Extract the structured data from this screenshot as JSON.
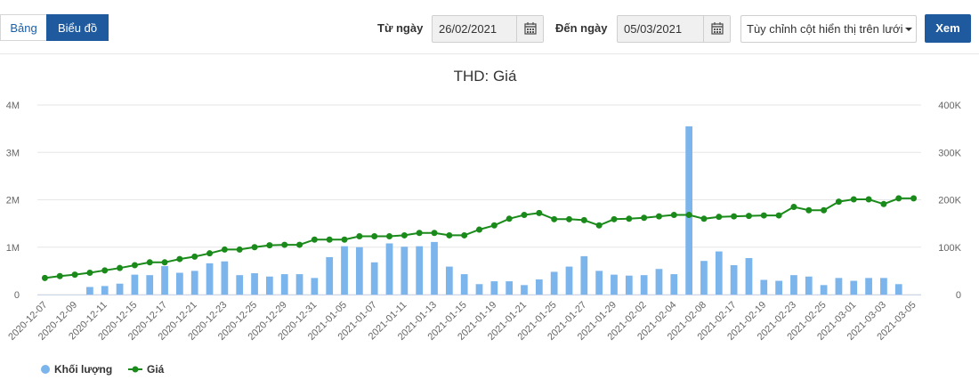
{
  "toolbar": {
    "tab_table": "Bảng",
    "tab_chart": "Biểu đồ",
    "from_label": "Từ ngày",
    "from_value": "26/02/2021",
    "to_label": "Đến ngày",
    "to_value": "05/03/2021",
    "column_select": "Tùy chỉnh cột hiển thị trên lưới",
    "view_button": "Xem"
  },
  "chart_data": {
    "type": "bar",
    "title": "THD: Giá",
    "categories": [
      "2020-12-07",
      "2020-12-08",
      "2020-12-09",
      "2020-12-10",
      "2020-12-11",
      "2020-12-14",
      "2020-12-15",
      "2020-12-16",
      "2020-12-17",
      "2020-12-18",
      "2020-12-21",
      "2020-12-22",
      "2020-12-23",
      "2020-12-24",
      "2020-12-25",
      "2020-12-28",
      "2020-12-29",
      "2020-12-30",
      "2020-12-31",
      "2021-01-04",
      "2021-01-05",
      "2021-01-06",
      "2021-01-07",
      "2021-01-08",
      "2021-01-11",
      "2021-01-12",
      "2021-01-13",
      "2021-01-14",
      "2021-01-15",
      "2021-01-18",
      "2021-01-19",
      "2021-01-20",
      "2021-01-21",
      "2021-01-22",
      "2021-01-25",
      "2021-01-26",
      "2021-01-27",
      "2021-01-28",
      "2021-01-29",
      "2021-02-01",
      "2021-02-02",
      "2021-02-03",
      "2021-02-04",
      "2021-02-05",
      "2021-02-08",
      "2021-02-09",
      "2021-02-17",
      "2021-02-18",
      "2021-02-19",
      "2021-02-22",
      "2021-02-23",
      "2021-02-24",
      "2021-02-25",
      "2021-02-26",
      "2021-03-01",
      "2021-03-02",
      "2021-03-03",
      "2021-03-04",
      "2021-03-05"
    ],
    "tick_labels": [
      "2020-12-07",
      "2020-12-09",
      "2020-12-11",
      "2020-12-15",
      "2020-12-17",
      "2020-12-21",
      "2020-12-23",
      "2020-12-25",
      "2020-12-29",
      "2020-12-31",
      "2021-01-05",
      "2021-01-07",
      "2021-01-11",
      "2021-01-13",
      "2021-01-15",
      "2021-01-19",
      "2021-01-21",
      "2021-01-25",
      "2021-01-27",
      "2021-01-29",
      "2021-02-02",
      "2021-02-04",
      "2021-02-08",
      "2021-02-17",
      "2021-02-19",
      "2021-02-23",
      "2021-02-25",
      "2021-03-01",
      "2021-03-03",
      "2021-03-05"
    ],
    "series": [
      {
        "name": "Khối lượng",
        "type": "bar",
        "axis": "left",
        "color": "#7cb5ec",
        "values": [
          0,
          0,
          0,
          160000,
          180000,
          230000,
          420000,
          410000,
          600000,
          460000,
          500000,
          660000,
          700000,
          410000,
          450000,
          380000,
          430000,
          430000,
          350000,
          790000,
          1020000,
          1000000,
          680000,
          1080000,
          1010000,
          1020000,
          1110000,
          590000,
          430000,
          220000,
          280000,
          280000,
          200000,
          320000,
          480000,
          590000,
          810000,
          500000,
          420000,
          400000,
          410000,
          540000,
          430000,
          3550000,
          710000,
          910000,
          620000,
          770000,
          310000,
          290000,
          410000,
          380000,
          200000,
          350000,
          290000,
          350000,
          350000,
          220000,
          0
        ]
      },
      {
        "name": "Giá",
        "type": "line",
        "axis": "right",
        "color": "#1a8a1a",
        "values": [
          35000,
          39000,
          42000,
          46000,
          51000,
          56000,
          62000,
          68000,
          68000,
          75000,
          80000,
          87000,
          95000,
          95000,
          100000,
          104000,
          105000,
          105000,
          116000,
          116000,
          116000,
          123000,
          123000,
          123000,
          125000,
          130000,
          130000,
          125000,
          125000,
          137000,
          146000,
          160000,
          168000,
          172000,
          159000,
          159000,
          157000,
          146000,
          159000,
          160000,
          162000,
          165000,
          168000,
          168000,
          160000,
          164000,
          165000,
          166000,
          167000,
          167000,
          185000,
          178000,
          178000,
          196000,
          201000,
          201000,
          191000,
          203000,
          203000
        ]
      }
    ],
    "left_axis": {
      "min": 0,
      "max": 4000000,
      "ticks": [
        "0",
        "1M",
        "2M",
        "3M",
        "4M"
      ]
    },
    "right_axis": {
      "min": 0,
      "max": 400000,
      "ticks": [
        "0",
        "100K",
        "200K",
        "300K",
        "400K"
      ]
    },
    "grid": true,
    "legend": {
      "placement": "bottom-left",
      "items": [
        "Khối lượng",
        "Giá"
      ]
    }
  }
}
